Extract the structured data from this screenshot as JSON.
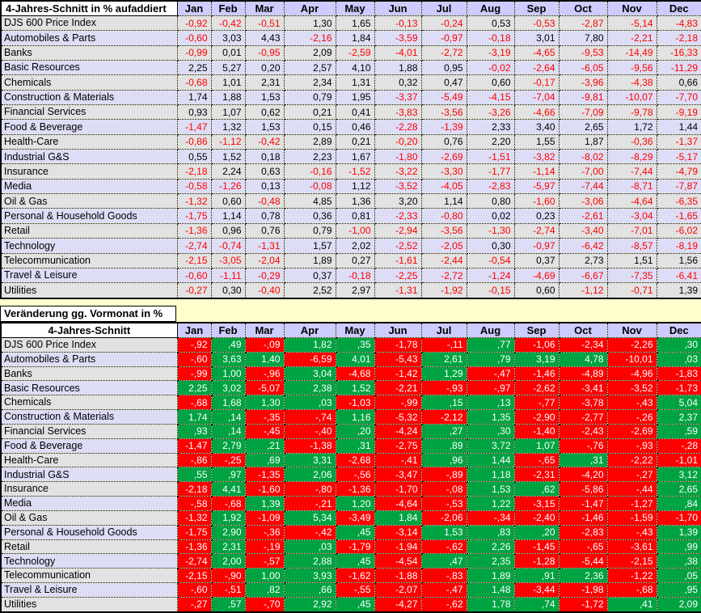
{
  "months": [
    "Jan",
    "Feb",
    "Mar",
    "Apr",
    "May",
    "Jun",
    "Jul",
    "Aug",
    "Sep",
    "Oct",
    "Nov",
    "Dec"
  ],
  "colors": {
    "sheet_background": "#FFFFCC",
    "header_background": "#CCCCFF",
    "stripe_gray": "#E2E2E2",
    "stripe_lavender": "#DDDDF6",
    "negative_text": "#FF0000",
    "positive_cell_fill": "#00A342",
    "negative_cell_fill": "#FF0000"
  },
  "cumulative_table": {
    "title": "4-Jahres-Schnitt in % aufaddiert",
    "rows": [
      {
        "label": "DJS 600 Price Index",
        "values": [
          "-0,92",
          "-0,42",
          "-0,51",
          "1,30",
          "1,65",
          "-0,13",
          "-0,24",
          "0,53",
          "-0,53",
          "-2,87",
          "-5,14",
          "-4,83"
        ]
      },
      {
        "label": "Automobiles & Parts",
        "values": [
          "-0,60",
          "3,03",
          "4,43",
          "-2,16",
          "1,84",
          "-3,59",
          "-0,97",
          "-0,18",
          "3,01",
          "7,80",
          "-2,21",
          "-2,18"
        ]
      },
      {
        "label": "Banks",
        "values": [
          "-0,99",
          "0,01",
          "-0,95",
          "2,09",
          "-2,59",
          "-4,01",
          "-2,72",
          "-3,19",
          "-4,65",
          "-9,53",
          "-14,49",
          "-16,33"
        ]
      },
      {
        "label": "Basic Resources",
        "values": [
          "2,25",
          "5,27",
          "0,20",
          "2,57",
          "4,10",
          "1,88",
          "0,95",
          "-0,02",
          "-2,64",
          "-6,05",
          "-9,56",
          "-11,29"
        ]
      },
      {
        "label": "Chemicals",
        "values": [
          "-0,68",
          "1,01",
          "2,31",
          "2,34",
          "1,31",
          "0,32",
          "0,47",
          "0,60",
          "-0,17",
          "-3,96",
          "-4,38",
          "0,66"
        ]
      },
      {
        "label": "Construction & Materials",
        "values": [
          "1,74",
          "1,88",
          "1,53",
          "0,79",
          "1,95",
          "-3,37",
          "-5,49",
          "-4,15",
          "-7,04",
          "-9,81",
          "-10,07",
          "-7,70"
        ]
      },
      {
        "label": "Financial Services",
        "values": [
          "0,93",
          "1,07",
          "0,62",
          "0,21",
          "0,41",
          "-3,83",
          "-3,56",
          "-3,26",
          "-4,66",
          "-7,09",
          "-9,78",
          "-9,19"
        ]
      },
      {
        "label": "Food & Beverage",
        "values": [
          "-1,47",
          "1,32",
          "1,53",
          "0,15",
          "0,46",
          "-2,28",
          "-1,39",
          "2,33",
          "3,40",
          "2,65",
          "1,72",
          "1,44"
        ]
      },
      {
        "label": "Health-Care",
        "values": [
          "-0,86",
          "-1,12",
          "-0,42",
          "2,89",
          "0,21",
          "-0,20",
          "0,76",
          "2,20",
          "1,55",
          "1,87",
          "-0,36",
          "-1,37"
        ]
      },
      {
        "label": "Industrial G&S",
        "values": [
          "0,55",
          "1,52",
          "0,18",
          "2,23",
          "1,67",
          "-1,80",
          "-2,69",
          "-1,51",
          "-3,82",
          "-8,02",
          "-8,29",
          "-5,17"
        ]
      },
      {
        "label": "Insurance",
        "values": [
          "-2,18",
          "2,24",
          "0,63",
          "-0,16",
          "-1,52",
          "-3,22",
          "-3,30",
          "-1,77",
          "-1,14",
          "-7,00",
          "-7,44",
          "-4,79"
        ]
      },
      {
        "label": "Media",
        "values": [
          "-0,58",
          "-1,26",
          "0,13",
          "-0,08",
          "1,12",
          "-3,52",
          "-4,05",
          "-2,83",
          "-5,97",
          "-7,44",
          "-8,71",
          "-7,87"
        ]
      },
      {
        "label": "Oil & Gas",
        "values": [
          "-1,32",
          "0,60",
          "-0,48",
          "4,85",
          "1,36",
          "3,20",
          "1,14",
          "0,80",
          "-1,60",
          "-3,06",
          "-4,64",
          "-6,35"
        ]
      },
      {
        "label": "Personal & Household Goods",
        "values": [
          "-1,75",
          "1,14",
          "0,78",
          "0,36",
          "0,81",
          "-2,33",
          "-0,80",
          "0,02",
          "0,23",
          "-2,61",
          "-3,04",
          "-1,65"
        ]
      },
      {
        "label": "Retail",
        "values": [
          "-1,36",
          "0,96",
          "0,76",
          "0,79",
          "-1,00",
          "-2,94",
          "-3,56",
          "-1,30",
          "-2,74",
          "-3,40",
          "-7,01",
          "-6,02"
        ]
      },
      {
        "label": "Technology",
        "values": [
          "-2,74",
          "-0,74",
          "-1,31",
          "1,57",
          "2,02",
          "-2,52",
          "-2,05",
          "0,30",
          "-0,97",
          "-6,42",
          "-8,57",
          "-8,19"
        ]
      },
      {
        "label": "Telecommunication",
        "values": [
          "-2,15",
          "-3,05",
          "-2,04",
          "1,89",
          "0,27",
          "-1,61",
          "-2,44",
          "-0,54",
          "0,37",
          "2,73",
          "1,51",
          "1,56"
        ]
      },
      {
        "label": "Travel & Leisure",
        "values": [
          "-0,60",
          "-1,11",
          "-0,29",
          "0,37",
          "-0,18",
          "-2,25",
          "-2,72",
          "-1,24",
          "-4,69",
          "-6,67",
          "-7,35",
          "-6,41"
        ]
      },
      {
        "label": "Utilities",
        "values": [
          "-0,27",
          "0,30",
          "-0,40",
          "2,52",
          "2,97",
          "-1,31",
          "-1,92",
          "-0,15",
          "0,60",
          "-1,12",
          "-0,71",
          "1,39"
        ]
      }
    ]
  },
  "monthly_change": {
    "caption": "Veränderung gg. Vormonat in %",
    "title": "4-Jahres-Schnitt",
    "rows": [
      {
        "label": "DJS 600 Price Index",
        "values": [
          "-,92",
          ",49",
          "-,09",
          "1,82",
          ",35",
          "-1,78",
          "-,11",
          ",77",
          "-1,06",
          "-2,34",
          "-2,26",
          ",30"
        ]
      },
      {
        "label": "Automobiles & Parts",
        "values": [
          "-,60",
          "3,63",
          "1,40",
          "-6,59",
          "4,01",
          "-5,43",
          "2,61",
          ",79",
          "3,19",
          "4,78",
          "-10,01",
          ",03"
        ]
      },
      {
        "label": "Banks",
        "values": [
          "-,99",
          "1,00",
          "-,96",
          "3,04",
          "-4,68",
          "-1,42",
          "1,29",
          "-,47",
          "-1,46",
          "-4,89",
          "-4,96",
          "-1,83"
        ]
      },
      {
        "label": "Basic Resources",
        "values": [
          "2,25",
          "3,02",
          "-5,07",
          "2,38",
          "1,52",
          "-2,21",
          "-,93",
          "-,97",
          "-2,62",
          "-3,41",
          "-3,52",
          "-1,73"
        ]
      },
      {
        "label": "Chemicals",
        "values": [
          "-,68",
          "1,68",
          "1,30",
          ",03",
          "-1,03",
          "-,99",
          ",15",
          ",13",
          "-,77",
          "-3,78",
          "-,43",
          "5,04"
        ]
      },
      {
        "label": "Construction & Materials",
        "values": [
          "1,74",
          ",14",
          "-,35",
          "-,74",
          "1,16",
          "-5,32",
          "-2,12",
          "1,35",
          "-2,90",
          "-2,77",
          "-,26",
          "2,37"
        ]
      },
      {
        "label": "Financial Services",
        "values": [
          ",93",
          ",14",
          "-,45",
          "-,40",
          ",20",
          "-4,24",
          ",27",
          ",30",
          "-1,40",
          "-2,43",
          "-2,69",
          ",59"
        ]
      },
      {
        "label": "Food & Beverage",
        "values": [
          "-1,47",
          "2,79",
          ",21",
          "-1,38",
          ",31",
          "-2,75",
          ",89",
          "3,72",
          "1,07",
          "-,76",
          "-,93",
          "-,28"
        ]
      },
      {
        "label": "Health-Care",
        "values": [
          "-,86",
          "-,25",
          ",69",
          "3,31",
          "-2,68",
          "-,41",
          ",96",
          "1,44",
          "-,65",
          ",31",
          "-2,22",
          "-1,01"
        ]
      },
      {
        "label": "Industrial G&S",
        "values": [
          ",55",
          ",97",
          "-1,35",
          "2,06",
          "-,56",
          "-3,47",
          "-,89",
          "1,18",
          "-2,31",
          "-4,20",
          "-,27",
          "3,12"
        ]
      },
      {
        "label": "Insurance",
        "values": [
          "-2,18",
          "4,41",
          "-1,60",
          "-,80",
          "-1,36",
          "-1,70",
          "-,08",
          "1,53",
          ",62",
          "-5,86",
          "-,44",
          "2,65"
        ]
      },
      {
        "label": "Media",
        "values": [
          "-,58",
          "-,68",
          "1,39",
          "-,21",
          "1,20",
          "-4,64",
          "-,53",
          "1,22",
          "-3,15",
          "-1,47",
          "-1,27",
          ",84"
        ]
      },
      {
        "label": "Oil & Gas",
        "values": [
          "-1,32",
          "1,92",
          "-1,09",
          "5,34",
          "-3,49",
          "1,84",
          "-2,06",
          "-,34",
          "-2,40",
          "-1,46",
          "-1,59",
          "-1,70"
        ]
      },
      {
        "label": "Personal & Household Goods",
        "values": [
          "-1,75",
          "2,90",
          "-,36",
          "-,42",
          ",45",
          "-3,14",
          "1,53",
          ",83",
          ",20",
          "-2,83",
          "-,43",
          "1,39"
        ]
      },
      {
        "label": "Retail",
        "values": [
          "-1,36",
          "2,31",
          "-,19",
          ",03",
          "-1,79",
          "-1,94",
          "-,62",
          "2,26",
          "-1,45",
          "-,65",
          "-3,61",
          ",99"
        ]
      },
      {
        "label": "Technology",
        "values": [
          "-2,74",
          "2,00",
          "-,57",
          "2,88",
          ",45",
          "-4,54",
          ",47",
          "2,35",
          "-1,28",
          "-5,44",
          "-2,15",
          ",38"
        ]
      },
      {
        "label": "Telecommunication",
        "values": [
          "-2,15",
          "-,90",
          "1,00",
          "3,93",
          "-1,62",
          "-1,88",
          "-,83",
          "1,89",
          ",91",
          "2,36",
          "-1,22",
          ",05"
        ]
      },
      {
        "label": "Travel & Leisure",
        "values": [
          "-,60",
          "-,51",
          ",82",
          ",66",
          "-,55",
          "-2,07",
          "-,47",
          "1,48",
          "-3,44",
          "-1,98",
          "-,68",
          ",95"
        ]
      },
      {
        "label": "Utilities",
        "values": [
          "-,27",
          ",57",
          "-,70",
          "2,92",
          ",45",
          "-4,27",
          "-,62",
          "1,78",
          ",74",
          "-1,72",
          ",41",
          "2,09"
        ]
      }
    ]
  }
}
